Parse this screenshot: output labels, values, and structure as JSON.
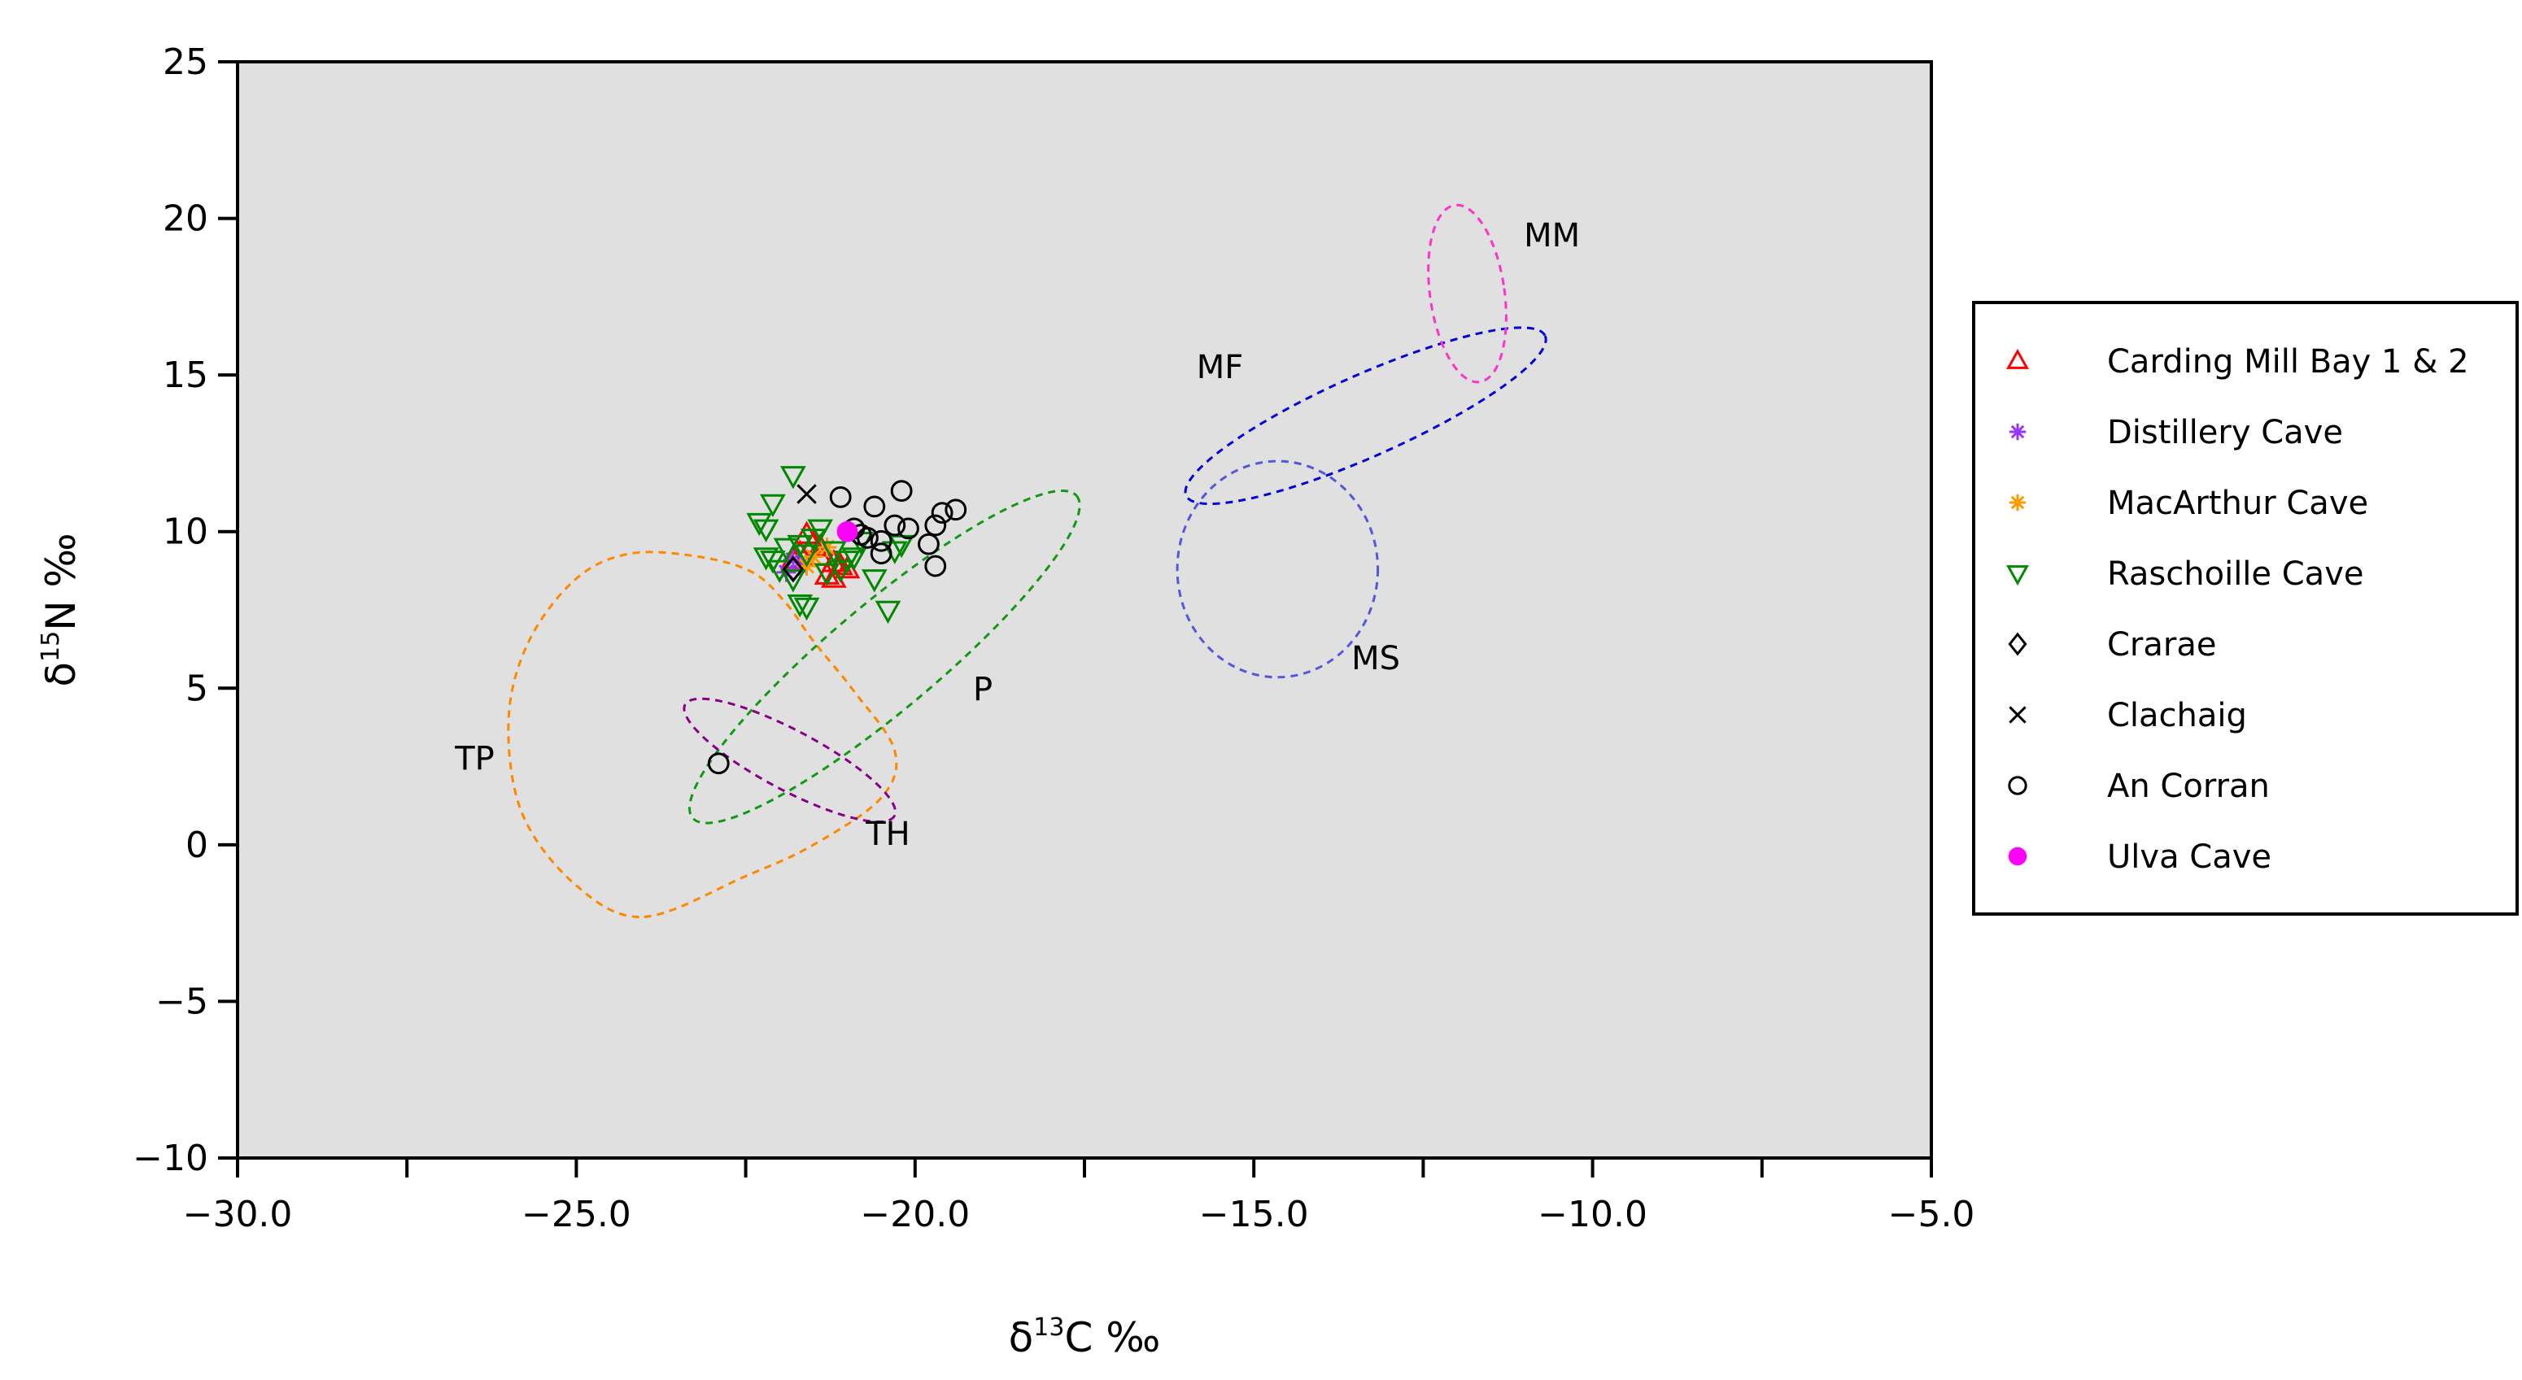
{
  "chart_data": {
    "type": "scatter",
    "title": "",
    "xlabel": {
      "prefix": "δ",
      "sup": "13",
      "suffix": "C ‰"
    },
    "ylabel": {
      "prefix": "δ",
      "sup": "15",
      "suffix": "N ‰"
    },
    "xlim": [
      -30.0,
      -5.0
    ],
    "ylim": [
      -10,
      25
    ],
    "x_ticks": [
      -30.0,
      -27.5,
      -25.0,
      -22.5,
      -20.0,
      -17.5,
      -15.0,
      -12.5,
      -10.0,
      -7.5,
      -5.0
    ],
    "x_tick_labels": [
      "−30.0",
      "",
      "−25.0",
      "",
      "−20.0",
      "",
      "−15.0",
      "",
      "−10.0",
      "",
      "−5.0"
    ],
    "y_ticks": [
      -10,
      -5,
      0,
      5,
      10,
      15,
      20,
      25
    ],
    "y_tick_labels": [
      "−10",
      "−5",
      "0",
      "5",
      "10",
      "15",
      "20",
      "25"
    ],
    "background_color": "#e0e0e0",
    "grid": false,
    "legend_position": "right-outside",
    "series": [
      {
        "name": "Carding Mill Bay 1 & 2",
        "marker": "triangle-up",
        "color": "#ff0000",
        "points": [
          [
            -21.6,
            9.9
          ],
          [
            -21.4,
            9.5
          ],
          [
            -21.2,
            9.0
          ],
          [
            -21.7,
            9.3
          ],
          [
            -21.3,
            8.6
          ],
          [
            -21.1,
            8.9
          ],
          [
            -21.5,
            9.6
          ],
          [
            -21.8,
            9.1
          ],
          [
            -21.2,
            8.5
          ],
          [
            -21.0,
            8.8
          ],
          [
            -21.4,
            9.2
          ]
        ]
      },
      {
        "name": "Distillery Cave",
        "marker": "asterisk",
        "color": "#9933ff",
        "points": [
          [
            -21.8,
            9.1
          ],
          [
            -21.9,
            8.7
          ],
          [
            -21.7,
            8.9
          ]
        ]
      },
      {
        "name": "MacArthur Cave",
        "marker": "asterisk",
        "color": "#ff9900",
        "points": [
          [
            -21.5,
            9.2
          ],
          [
            -21.3,
            9.5
          ],
          [
            -21.6,
            8.9
          ]
        ]
      },
      {
        "name": "Raschoille Cave",
        "marker": "triangle-down",
        "color": "#008800",
        "points": [
          [
            -21.8,
            11.8
          ],
          [
            -22.1,
            10.9
          ],
          [
            -22.3,
            10.3
          ],
          [
            -22.2,
            10.1
          ],
          [
            -21.9,
            9.5
          ],
          [
            -22.1,
            9.1
          ],
          [
            -21.7,
            9.6
          ],
          [
            -21.6,
            9.3
          ],
          [
            -21.4,
            10.1
          ],
          [
            -21.2,
            9.4
          ],
          [
            -21.0,
            9.1
          ],
          [
            -20.8,
            9.7
          ],
          [
            -21.3,
            8.7
          ],
          [
            -21.8,
            8.5
          ],
          [
            -21.7,
            7.7
          ],
          [
            -21.6,
            7.6
          ],
          [
            -20.6,
            8.5
          ],
          [
            -20.4,
            7.5
          ],
          [
            -20.3,
            9.4
          ],
          [
            -20.2,
            9.6
          ],
          [
            -22.0,
            8.8
          ],
          [
            -22.2,
            9.2
          ],
          [
            -21.1,
            8.8
          ],
          [
            -20.9,
            9.2
          ],
          [
            -21.5,
            9.8
          ]
        ]
      },
      {
        "name": "Crarae",
        "marker": "diamond",
        "color": "#000000",
        "points": [
          [
            -21.8,
            8.8
          ]
        ]
      },
      {
        "name": "Clachaig",
        "marker": "x",
        "color": "#000000",
        "points": [
          [
            -21.6,
            11.2
          ]
        ]
      },
      {
        "name": "An Corran",
        "marker": "circle-open",
        "color": "#000000",
        "points": [
          [
            -21.1,
            11.1
          ],
          [
            -20.2,
            11.3
          ],
          [
            -20.6,
            10.8
          ],
          [
            -20.9,
            10.1
          ],
          [
            -20.7,
            9.8
          ],
          [
            -20.5,
            9.7
          ],
          [
            -20.3,
            10.2
          ],
          [
            -20.1,
            10.1
          ],
          [
            -19.8,
            9.6
          ],
          [
            -19.7,
            10.2
          ],
          [
            -19.6,
            10.6
          ],
          [
            -19.4,
            10.7
          ],
          [
            -19.7,
            8.9
          ],
          [
            -20.5,
            9.3
          ],
          [
            -22.9,
            2.6
          ],
          [
            -20.8,
            9.9
          ]
        ]
      },
      {
        "name": "Ulva Cave",
        "marker": "circle-filled",
        "color": "#ff00ff",
        "points": [
          [
            -21.0,
            10.0
          ]
        ]
      }
    ],
    "regions": [
      {
        "label": "TP",
        "color": "#ff8800",
        "label_at": [
          -26.5,
          2.4
        ],
        "path": [
          [
            -24.0,
            -2.3
          ],
          [
            -22.5,
            -1.0
          ],
          [
            -21.5,
            0.0
          ],
          [
            -20.5,
            1.5
          ],
          [
            -20.3,
            3.0
          ],
          [
            -20.9,
            4.9
          ],
          [
            -21.5,
            6.5
          ],
          [
            -21.9,
            7.7
          ],
          [
            -22.4,
            8.7
          ],
          [
            -23.2,
            9.2
          ],
          [
            -24.2,
            9.3
          ],
          [
            -25.0,
            8.5
          ],
          [
            -25.7,
            6.5
          ],
          [
            -26.0,
            4.0
          ],
          [
            -25.8,
            1.0
          ],
          [
            -25.0,
            -1.3
          ],
          [
            -24.0,
            -2.3
          ]
        ]
      },
      {
        "label": "P",
        "color": "#119911",
        "label_at": [
          -19.0,
          4.6
        ],
        "ellipse": {
          "cx": -20.45,
          "cy": 6.0,
          "rx": 3.7,
          "ry": 1.7,
          "angle": 40
        }
      },
      {
        "label": "TH",
        "color": "#880088",
        "label_at": [
          -20.4,
          0.0
        ],
        "ellipse": {
          "cx": -21.85,
          "cy": 2.7,
          "rx": 1.75,
          "ry": 0.95,
          "angle": -28
        }
      },
      {
        "label": "MF",
        "color": "#0000dd",
        "label_at": [
          -15.5,
          14.9
        ],
        "ellipse": {
          "cx": -13.35,
          "cy": 13.7,
          "rx": 2.9,
          "ry": 1.3,
          "angle": 24
        }
      },
      {
        "label": "MS",
        "color": "#5555dd",
        "label_at": [
          -13.2,
          5.6
        ],
        "ellipse": {
          "cx": -14.65,
          "cy": 8.8,
          "rx": 1.48,
          "ry": 3.45,
          "angle": 0
        }
      },
      {
        "label": "MM",
        "color": "#ff33cc",
        "label_at": [
          -10.6,
          19.1
        ],
        "ellipse": {
          "cx": -11.85,
          "cy": 17.6,
          "rx": 0.55,
          "ry": 2.85,
          "angle": 8
        }
      }
    ]
  }
}
